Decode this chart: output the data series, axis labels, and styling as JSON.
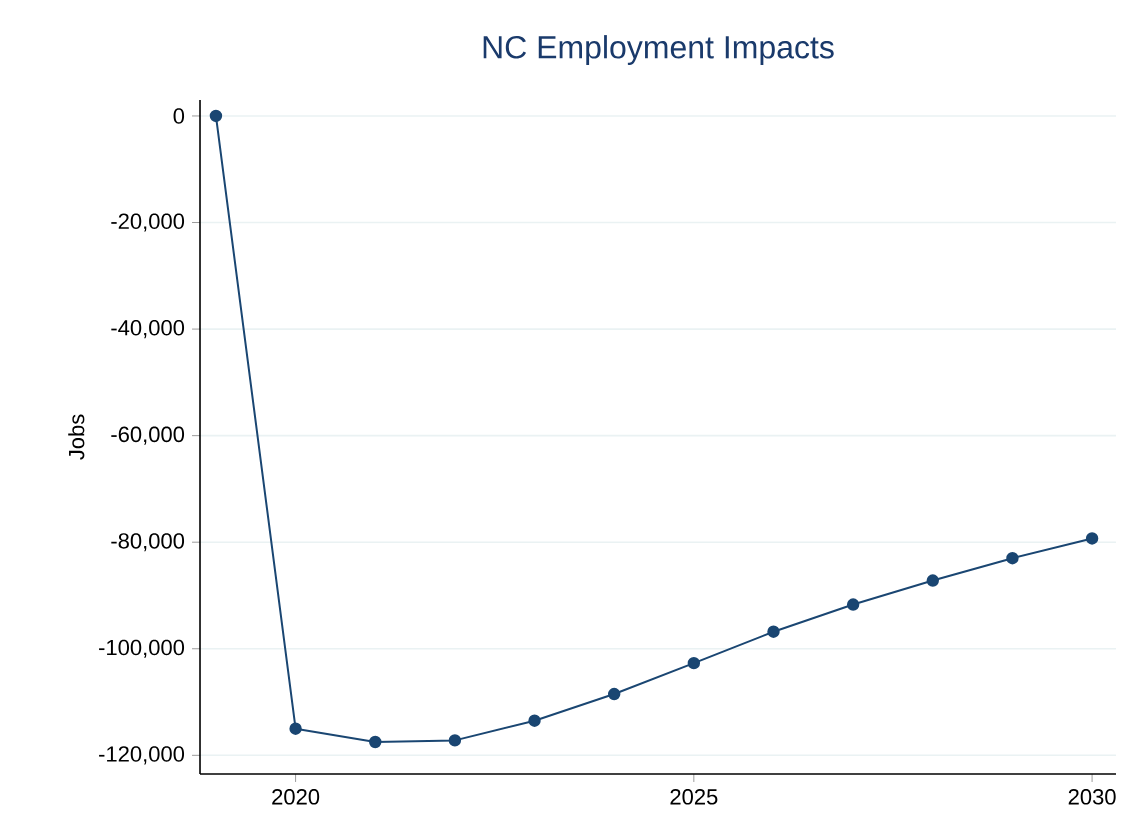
{
  "chart_data": {
    "type": "line",
    "title": "NC Employment Impacts",
    "ylabel": "Jobs",
    "x": [
      2019,
      2020,
      2021,
      2022,
      2023,
      2024,
      2025,
      2026,
      2027,
      2028,
      2029,
      2030
    ],
    "series": [
      {
        "color": "#1a4672",
        "values": [
          0,
          -115000,
          -117500,
          -117200,
          -113500,
          -108500,
          -102700,
          -96800,
          -91700,
          -87200,
          -83000,
          -79300
        ]
      }
    ],
    "xlim": [
      2018.8,
      2030.3
    ],
    "ylim": [
      -123500,
      3000
    ],
    "xticks": [
      2020,
      2025,
      2030
    ],
    "yticks": [
      {
        "value": 0,
        "label": "0"
      },
      {
        "value": -20000,
        "label": "-20,000"
      },
      {
        "value": -40000,
        "label": "-40,000"
      },
      {
        "value": -60000,
        "label": "-60,000"
      },
      {
        "value": -80000,
        "label": "-80,000"
      },
      {
        "value": -100000,
        "label": "-100,000"
      },
      {
        "value": -120000,
        "label": "-120,000"
      }
    ],
    "grid": "y",
    "marker": "circle",
    "line_style": "solid"
  }
}
